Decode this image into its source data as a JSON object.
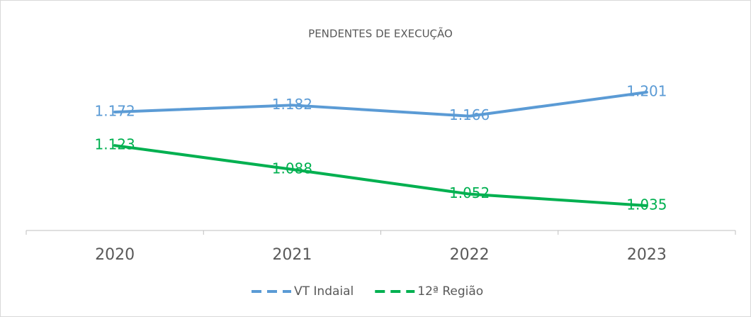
{
  "chart_data": {
    "type": "line",
    "title": "PENDENTES DE EXECUÇÃO",
    "categories": [
      "2020",
      "2021",
      "2022",
      "2023"
    ],
    "series": [
      {
        "name": "VT Indaial",
        "color": "#5b9bd5",
        "values": [
          1172,
          1182,
          1166,
          1201
        ],
        "value_labels": [
          "1.172",
          "1.182",
          "1.166",
          "1.201"
        ]
      },
      {
        "name": "12ª Região",
        "color": "#00b050",
        "values": [
          1123,
          1088,
          1052,
          1035
        ],
        "value_labels": [
          "1.123",
          "1.088",
          "1.052",
          "1.035"
        ]
      }
    ],
    "legend": "bottom"
  }
}
